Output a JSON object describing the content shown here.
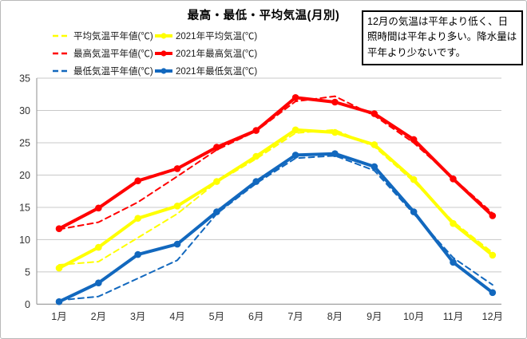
{
  "annotation": {
    "text": "12月の気温は平年より低く、日照時間は平年より多い。降水量は平年より少ないです。"
  },
  "chart_data": {
    "type": "line",
    "title": "最高・最低・平均気温(月別)",
    "xlabel": "",
    "ylabel": "",
    "ylim": [
      0,
      35
    ],
    "y_ticks": [
      0,
      5,
      10,
      15,
      20,
      25,
      30,
      35
    ],
    "grid": true,
    "legend_position": "top-left",
    "categories": [
      "1月",
      "2月",
      "3月",
      "4月",
      "5月",
      "6月",
      "7月",
      "8月",
      "9月",
      "10月",
      "11月",
      "12月"
    ],
    "series": [
      {
        "name": "平均気温平年値(℃)",
        "color": "#FFFF00",
        "style": "dashed",
        "values": [
          6.1,
          6.6,
          10.3,
          14.0,
          18.9,
          22.5,
          26.5,
          27.0,
          24.4,
          19.0,
          12.8,
          8.0
        ]
      },
      {
        "name": "2021年平均気温(℃)",
        "color": "#FFFF00",
        "style": "solid-marker",
        "values": [
          5.6,
          8.8,
          13.3,
          15.2,
          19.0,
          22.9,
          27.0,
          26.6,
          24.7,
          19.3,
          12.5,
          7.6
        ]
      },
      {
        "name": "最高気温平年値(℃)",
        "color": "#FF0000",
        "style": "dashed",
        "values": [
          11.6,
          12.7,
          15.8,
          19.8,
          23.9,
          26.8,
          31.4,
          32.2,
          29.2,
          25.0,
          19.5,
          14.1
        ]
      },
      {
        "name": "2021年最高気温(℃)",
        "color": "#FF0000",
        "style": "solid-marker",
        "values": [
          11.7,
          14.9,
          19.1,
          21.0,
          24.3,
          26.9,
          32.0,
          31.3,
          29.5,
          25.5,
          19.4,
          13.7
        ]
      },
      {
        "name": "最低気温平年値(℃)",
        "color": "#1268BE",
        "style": "dashed",
        "values": [
          0.6,
          1.2,
          4.0,
          6.8,
          14.0,
          18.7,
          22.6,
          23.0,
          20.7,
          14.0,
          7.2,
          3.0
        ]
      },
      {
        "name": "2021年最低気温(℃)",
        "color": "#1268BE",
        "style": "solid-marker",
        "values": [
          0.4,
          3.3,
          7.7,
          9.3,
          14.3,
          19.0,
          23.1,
          23.3,
          21.3,
          14.3,
          6.5,
          1.8
        ]
      }
    ],
    "colors": {
      "grid": "#c8c8c8",
      "axis": "#a0a0a0",
      "tick_text": "#333333"
    }
  }
}
